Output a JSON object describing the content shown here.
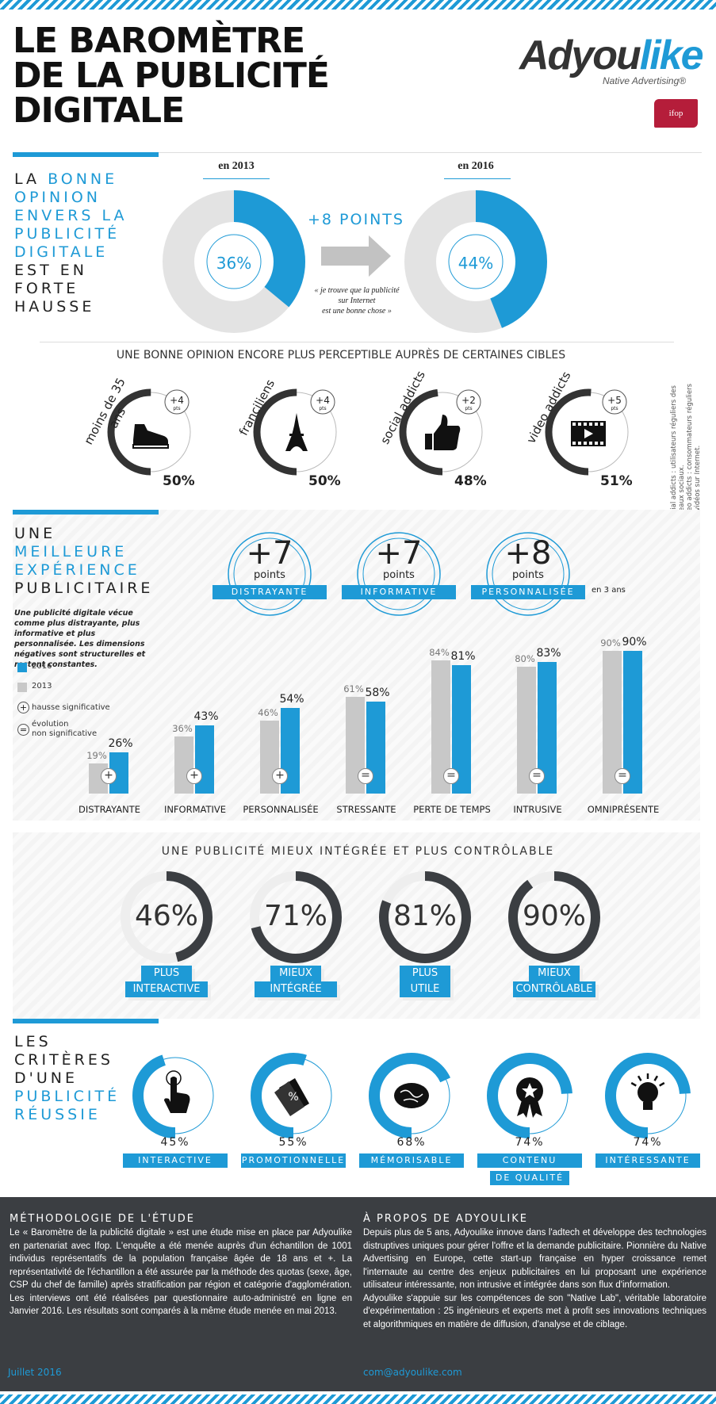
{
  "header": {
    "title_line1": "LE BAROMÈTRE",
    "title_line2": "DE LA PUBLICITÉ",
    "title_line3": "DIGITALE",
    "logo_a": "Adyou",
    "logo_b": "like",
    "logo_sub": "Native Advertising®",
    "ifop": "ifop"
  },
  "s1": {
    "l1a": "LA ",
    "l1b": "BONNE",
    "l2": "OPINION",
    "l3": "ENVERS LA",
    "l4": "PUBLICITÉ",
    "l5": "DIGITALE",
    "l6": "EST EN",
    "l7": "FORTE",
    "l8": "HAUSSE",
    "y2013": "en 2013",
    "y2016": "en 2016",
    "p2013": "36%",
    "p2016": "44%",
    "v2013": 36,
    "v2016": 44,
    "delta": "+8 POINTS",
    "quote1": "« je trouve que la publicité",
    "quote2": "sur Internet",
    "quote3": "est une bonne chose »"
  },
  "s2": {
    "heading": "UNE BONNE OPINION ENCORE PLUS PERCEPTIBLE AUPRÈS DE CERTAINES CIBLES",
    "targets": [
      {
        "label": "moins de 35 ans",
        "delta": "+4",
        "pts": "pts",
        "pct": "50%",
        "value": 50,
        "icon": "sneaker-icon"
      },
      {
        "label": "franciliens",
        "delta": "+4",
        "pts": "pts",
        "pct": "50%",
        "value": 50,
        "icon": "eiffel-tower-icon"
      },
      {
        "label": "social addicts",
        "delta": "+2",
        "pts": "pts",
        "pct": "48%",
        "value": 48,
        "icon": "thumbs-up-icon"
      },
      {
        "label": "video addicts",
        "delta": "+5",
        "pts": "pts",
        "pct": "51%",
        "value": 51,
        "icon": "film-icon"
      }
    ],
    "note1": "Social addicts : utilisateurs réguliers des",
    "note2": "réseaux sociaux.",
    "note3": "Video addicts : consommateurs réguliers",
    "note4": "de vidéos sur Internet."
  },
  "s3": {
    "t1": "UNE",
    "t2": "MEILLEURE",
    "t3": "EXPÉRIENCE",
    "t4": "PUBLICITAIRE",
    "desc": "Une publicité digitale vécue comme plus distrayante, plus informative et plus personnalisée. Les dimensions négatives sont structurelles et restent constantes.",
    "badges": [
      {
        "num": "+7",
        "unit": "points",
        "label": "DISTRAYANTE"
      },
      {
        "num": "+7",
        "unit": "points",
        "label": "INFORMATIVE"
      },
      {
        "num": "+8",
        "unit": "points",
        "label": "PERSONNALISÉE"
      }
    ],
    "in3": "en 3 ans",
    "legend": {
      "y2016": "2016",
      "y2013": "2013",
      "plus": "hausse significative",
      "eq1": "évolution",
      "eq2": "non significative"
    },
    "colors": {
      "2016": "#1e9ad6",
      "2013": "#c8c8c8"
    }
  },
  "chart_data": {
    "type": "bar",
    "categories": [
      "DISTRAYANTE",
      "INFORMATIVE",
      "PERSONNALISÉE",
      "STRESSANTE",
      "PERTE DE TEMPS",
      "INTRUSIVE",
      "OMNIPRÉSENTE"
    ],
    "series": [
      {
        "name": "2013",
        "values": [
          19,
          36,
          46,
          61,
          84,
          80,
          90
        ],
        "labels": [
          "19%",
          "36%",
          "46%",
          "61%",
          "84%",
          "80%",
          "90%"
        ]
      },
      {
        "name": "2016",
        "values": [
          26,
          43,
          54,
          58,
          81,
          83,
          90
        ],
        "labels": [
          "26%",
          "43%",
          "54%",
          "58%",
          "81%",
          "83%",
          "90%"
        ]
      }
    ],
    "signs": [
      "+",
      "+",
      "+",
      "=",
      "=",
      "=",
      "="
    ],
    "ylim": [
      0,
      100
    ]
  },
  "s4": {
    "heading": "UNE PUBLICITÉ MIEUX INTÉGRÉE ET PLUS CONTRÔLABLE",
    "items": [
      {
        "pct": "46%",
        "value": 46,
        "l1": "PLUS",
        "l2": "INTERACTIVE"
      },
      {
        "pct": "71%",
        "value": 71,
        "l1": "MIEUX",
        "l2": "INTÉGRÉE"
      },
      {
        "pct": "81%",
        "value": 81,
        "l1": "PLUS UTILE",
        "l2": ""
      },
      {
        "pct": "90%",
        "value": 90,
        "l1": "MIEUX",
        "l2": "CONTRÔLABLE"
      }
    ]
  },
  "s5": {
    "t1": "LES",
    "t2": "CRITÈRES",
    "t3": "D'UNE",
    "t4": "PUBLICITÉ",
    "t5": "RÉUSSIE",
    "items": [
      {
        "pct": "45%",
        "value": 45,
        "l1": "INTERACTIVE",
        "l2": "",
        "icon": "pointer-hand-icon"
      },
      {
        "pct": "55%",
        "value": 55,
        "l1": "PROMOTIONNELLE",
        "l2": "",
        "icon": "price-tag-icon"
      },
      {
        "pct": "68%",
        "value": 68,
        "l1": "MÉMORISABLE",
        "l2": "",
        "icon": "brain-icon"
      },
      {
        "pct": "74%",
        "value": 74,
        "l1": "CONTENU",
        "l2": "DE QUALITÉ",
        "icon": "award-ribbon-icon"
      },
      {
        "pct": "74%",
        "value": 74,
        "l1": "INTÉRESSANTE",
        "l2": "",
        "icon": "light-bulb-icon"
      }
    ]
  },
  "footer": {
    "m_title": "MÉTHODOLOGIE DE L'ÉTUDE",
    "m_text": "Le « Baromètre de la publicité digitale » est une étude mise en place par Adyoulike en partenariat avec Ifop. L'enquête a été menée auprès d'un échantillon de 1001 individus représentatifs de la population française âgée de 18 ans et +. La représentativité de l'échantillon a été assurée par la méthode des quotas (sexe, âge, CSP du chef de famille) après stratification par région et catégorie d'agglomération. Les interviews ont été réalisées par questionnaire auto-administré en ligne en Janvier 2016. Les résultats sont comparés à la même étude menée en mai 2013.",
    "a_title": "À PROPOS DE ADYOULIKE",
    "a_text1": "Depuis plus de 5 ans, Adyoulike innove dans l'adtech et développe des technologies distruptives uniques pour gérer l'offre et la demande publicitaire. Pionnière du Native Advertising en Europe, cette start-up française en hyper croissance remet l'internaute au centre des enjeux publicitaires en lui proposant une expérience utilisateur intéressante, non intrusive et intégrée dans son flux d'information.",
    "a_text2": "Adyoulike s'appuie sur les compétences de son \"Native Lab\", véritable laboratoire d'expérimentation : 25 ingénieurs et experts met à profit ses innovations techniques et algorithmiques en matière de diffusion, d'analyse et de ciblage.",
    "date": "Juillet 2016",
    "email": "com@adyoulike.com"
  }
}
